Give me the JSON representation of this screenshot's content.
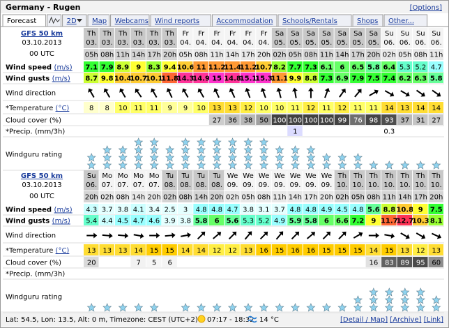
{
  "header": {
    "title": "Germany - Rugen",
    "options": "[Options]"
  },
  "tabs": [
    "Forecast",
    "2D",
    "Map",
    "Webcams",
    "Wind reports",
    "Accommodation",
    "Schools/Rentals",
    "Shops",
    "Other..."
  ],
  "labels": {
    "wind_speed": "Wind speed",
    "wind_gusts": "Wind gusts",
    "unit_ms": "(m/s)",
    "wind_direction": "Wind direction",
    "temperature": "*Temperature",
    "unit_c": "(°C)",
    "cloud_cover": "Cloud cover (%)",
    "precip": "*Precip. (mm/3h)",
    "rating": "Windguru rating"
  },
  "forecasts": [
    {
      "model": "GFS 50 km",
      "date": "03.10.2013",
      "init": "00 UTC",
      "days": [
        "Th",
        "Th",
        "Th",
        "Th",
        "Th",
        "Th",
        "Fr",
        "Fr",
        "Fr",
        "Fr",
        "Fr",
        "Fr",
        "Sa",
        "Sa",
        "Sa",
        "Sa",
        "Sa",
        "Sa",
        "Sa",
        "Su",
        "Su",
        "Su",
        "Su"
      ],
      "dates": [
        "03.",
        "03.",
        "03.",
        "03.",
        "03.",
        "03.",
        "04.",
        "04.",
        "04.",
        "04.",
        "04.",
        "04.",
        "05.",
        "05.",
        "05.",
        "05.",
        "05.",
        "05.",
        "05.",
        "06.",
        "06.",
        "06.",
        "06."
      ],
      "hours": [
        "05h",
        "08h",
        "11h",
        "14h",
        "17h",
        "20h",
        "05h",
        "08h",
        "11h",
        "14h",
        "17h",
        "20h",
        "02h",
        "05h",
        "08h",
        "11h",
        "14h",
        "17h",
        "20h",
        "02h",
        "05h",
        "08h",
        "11h"
      ],
      "wind_speed": [
        7.1,
        7.9,
        8.9,
        9,
        8.3,
        9.4,
        10.6,
        11,
        11.2,
        11.4,
        11.2,
        10.7,
        8.2,
        7.7,
        7.3,
        6.1,
        6,
        6.5,
        5.8,
        6.4,
        5.3,
        5.2,
        4.7
      ],
      "wind_gusts": [
        8.7,
        9.8,
        10.4,
        10.7,
        10.1,
        11.8,
        14.3,
        14.9,
        15,
        14.8,
        15.1,
        15.3,
        11.1,
        9.9,
        8.8,
        7.3,
        6.9,
        7.9,
        7.5,
        7.4,
        6.2,
        6.3,
        5.8
      ],
      "wind_direction": [
        330,
        330,
        330,
        325,
        330,
        335,
        330,
        330,
        335,
        335,
        340,
        340,
        345,
        350,
        0,
        20,
        35,
        40,
        60,
        120,
        120,
        125,
        125
      ],
      "temperature": [
        8,
        8,
        10,
        11,
        11,
        9,
        9,
        10,
        13,
        13,
        12,
        10,
        10,
        11,
        12,
        11,
        12,
        11,
        11,
        14,
        13,
        14,
        14
      ],
      "cloud_cover": [
        null,
        null,
        null,
        null,
        null,
        null,
        null,
        null,
        27,
        36,
        38,
        50,
        100,
        100,
        100,
        100,
        99,
        76,
        98,
        93,
        37,
        31,
        27
      ],
      "precip": [
        null,
        null,
        null,
        null,
        null,
        null,
        null,
        null,
        null,
        null,
        null,
        null,
        null,
        1,
        null,
        null,
        null,
        null,
        null,
        0.3,
        null,
        null,
        null
      ],
      "rating": [
        2,
        3,
        3,
        4,
        4,
        3,
        4,
        4,
        4,
        4,
        4,
        4,
        3,
        3,
        3,
        2,
        2,
        2,
        1,
        1,
        1,
        1,
        1
      ]
    },
    {
      "model": "GFS 50 km",
      "date": "03.10.2013",
      "init": "00 UTC",
      "days": [
        "Su",
        "Mo",
        "Mo",
        "Mo",
        "Mo",
        "Tu",
        "Tu",
        "Tu",
        "Tu",
        "We",
        "We",
        "We",
        "We",
        "We",
        "We",
        "We",
        "Th",
        "Th",
        "Th",
        "Th",
        "Th",
        "Th",
        "Th"
      ],
      "dates": [
        "06.",
        "07.",
        "07.",
        "07.",
        "07.",
        "08.",
        "08.",
        "08.",
        "08.",
        "09.",
        "09.",
        "09.",
        "09.",
        "09.",
        "09.",
        "09.",
        "10.",
        "10.",
        "10.",
        "10.",
        "10.",
        "10.",
        "10."
      ],
      "hours": [
        "20h",
        "02h",
        "08h",
        "14h",
        "20h",
        "02h",
        "08h",
        "14h",
        "20h",
        "02h",
        "05h",
        "08h",
        "11h",
        "14h",
        "17h",
        "20h",
        "02h",
        "05h",
        "08h",
        "11h",
        "14h",
        "17h",
        "20h"
      ],
      "wind_speed": [
        4.3,
        3.7,
        3.8,
        4.1,
        3.4,
        2.5,
        3,
        4.8,
        4.8,
        4.7,
        3.8,
        3.1,
        3.7,
        4.8,
        4.8,
        4.9,
        4.5,
        4.8,
        5.6,
        8.8,
        10.8,
        9,
        7.5
      ],
      "wind_gusts": [
        5.4,
        4.4,
        4.5,
        4.7,
        4.6,
        3.9,
        3.8,
        5.8,
        6,
        5.6,
        5.3,
        5.2,
        4.9,
        5.9,
        5.8,
        6,
        6.6,
        7.2,
        9,
        11.7,
        12.7,
        10.3,
        8.1
      ],
      "wind_direction": [
        90,
        95,
        95,
        100,
        90,
        85,
        80,
        45,
        50,
        45,
        40,
        45,
        40,
        45,
        50,
        45,
        45,
        60,
        90,
        100,
        120,
        120,
        115
      ],
      "temperature": [
        13,
        13,
        13,
        14,
        15,
        15,
        14,
        14,
        12,
        12,
        13,
        16,
        15,
        16,
        16,
        15,
        15,
        15,
        14,
        15,
        13,
        12,
        13
      ],
      "cloud_cover": [
        20,
        null,
        null,
        7,
        5,
        6,
        null,
        null,
        null,
        null,
        null,
        null,
        null,
        null,
        null,
        null,
        null,
        null,
        16,
        83,
        89,
        95,
        60
      ],
      "precip": [
        null,
        null,
        null,
        null,
        null,
        null,
        null,
        null,
        null,
        null,
        null,
        null,
        null,
        null,
        null,
        null,
        null,
        null,
        null,
        null,
        null,
        null,
        null
      ],
      "rating": [
        1,
        1,
        1,
        1,
        1,
        0,
        1,
        1,
        1,
        1,
        1,
        1,
        1,
        1,
        1,
        1,
        1,
        2,
        3,
        3,
        3,
        3,
        2
      ]
    }
  ],
  "footer": {
    "location": "Lat: 54.5, Lon: 13.5, Alt: 0 m, Timezone: CEST (UTC+2)",
    "sun": "07:17 - 18:32",
    "water": "14 °C",
    "links": [
      "[Detail / Map]",
      "[Archive]",
      "[Link]"
    ]
  }
}
